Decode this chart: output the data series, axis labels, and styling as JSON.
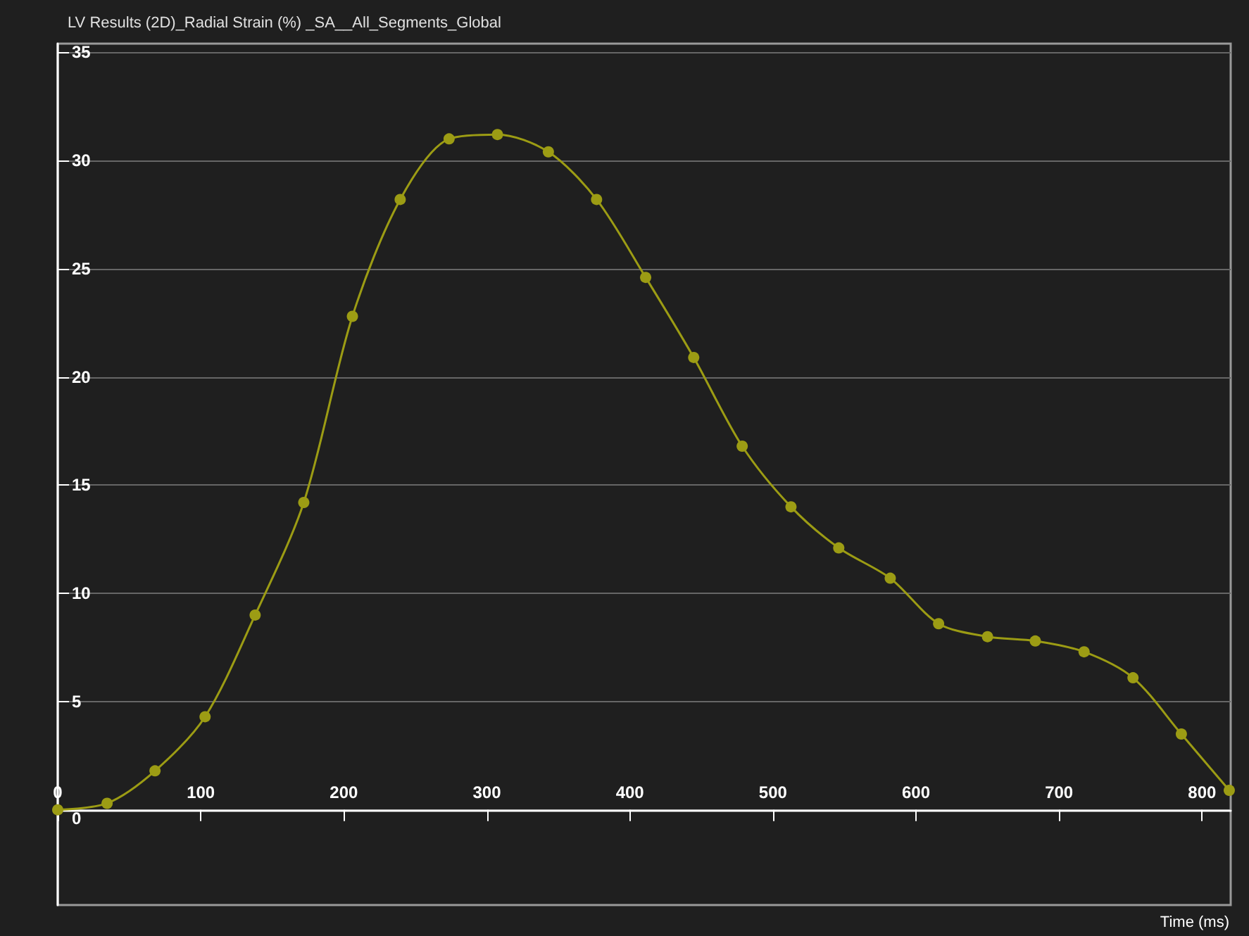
{
  "chart_data": {
    "type": "line",
    "title": "LV Results (2D)_Radial Strain (%) _SA__All_Segments_Global",
    "xlabel": "Time (ms)",
    "x": [
      0,
      34.5,
      68,
      103,
      138,
      172,
      206,
      239.4,
      273.6,
      307.4,
      343,
      376.7,
      411,
      444.6,
      478.5,
      512.6,
      546,
      582,
      615.8,
      650,
      683.4,
      717.5,
      751.7,
      785.5,
      819
    ],
    "series": [
      {
        "color": "#9c9c14",
        "values": [
          0,
          0.3,
          1.8,
          4.3,
          9,
          14.2,
          22.8,
          28.2,
          31,
          31.2,
          30.4,
          28.2,
          24.6,
          20.9,
          16.8,
          14,
          12.1,
          10.7,
          8.6,
          8,
          7.8,
          7.3,
          6.1,
          3.5,
          0.9
        ]
      }
    ],
    "xlim": [
      0,
      820
    ],
    "xticks": [
      0,
      100,
      200,
      300,
      400,
      500,
      600,
      700,
      800
    ],
    "ylim": [
      -4.4,
      35.4
    ],
    "yticks": [
      0,
      5,
      10,
      15,
      20,
      25,
      30,
      35
    ],
    "grid": "y",
    "marker": "circle",
    "line_style": "solid"
  }
}
